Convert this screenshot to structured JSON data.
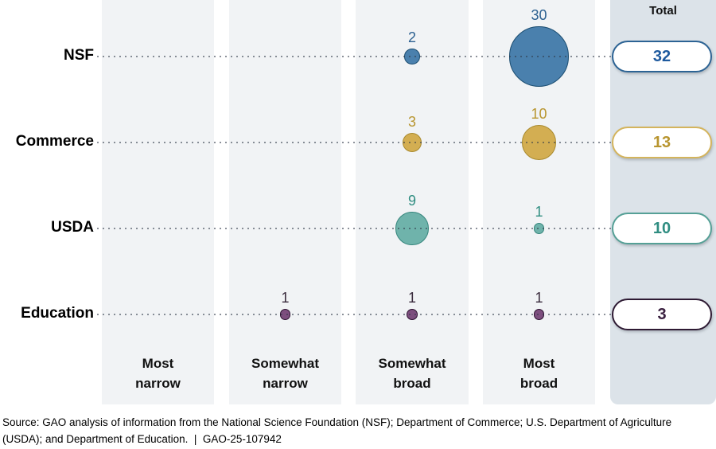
{
  "header": {
    "total_label": "Total"
  },
  "source_note": "Source: GAO analysis of information from the National Science Foundation (NSF); Department of Commerce; U.S. Department of Agriculture (USDA); and Department of Education.  |  GAO-25-107942",
  "chart_data": {
    "type": "bubble",
    "title": "",
    "xlabel": "",
    "ylabel": "",
    "legend_position": "none",
    "grid": "dotted row leader lines",
    "size_encoding": "bubble radius proportional to square root of value",
    "categories": [
      "Most narrow",
      "Somewhat narrow",
      "Somewhat broad",
      "Most broad"
    ],
    "total_column_label": "Total",
    "rows": [
      {
        "name": "NSF",
        "values": [
          0,
          0,
          2,
          30
        ],
        "total": 32,
        "fill": "#4a80ad",
        "stroke": "#1b4d71",
        "label_color": "#2d6191",
        "total_color": "#1e5a9e",
        "pill_border": "#2c6394"
      },
      {
        "name": "Commerce",
        "values": [
          0,
          0,
          3,
          10
        ],
        "total": 13,
        "fill": "#d3ae52",
        "stroke": "#a98a2e",
        "label_color": "#b8952f",
        "total_color": "#b8952f",
        "pill_border": "#d4b45c"
      },
      {
        "name": "USDA",
        "values": [
          0,
          0,
          9,
          1
        ],
        "total": 10,
        "fill": "#6fb3ab",
        "stroke": "#35857c",
        "label_color": "#2f8d81",
        "total_color": "#2f8d81",
        "pill_border": "#55a096"
      },
      {
        "name": "Education",
        "values": [
          0,
          1,
          1,
          1
        ],
        "total": 3,
        "fill": "#7d4e7e",
        "stroke": "#2c1230",
        "label_color": "#3a2b3d",
        "total_color": "#3a2040",
        "pill_border": "#2e1a33"
      }
    ],
    "colors": {
      "band_background": "#f1f3f5",
      "total_band_background": "#dce3e9",
      "leader_dots": "#8c929a"
    }
  }
}
